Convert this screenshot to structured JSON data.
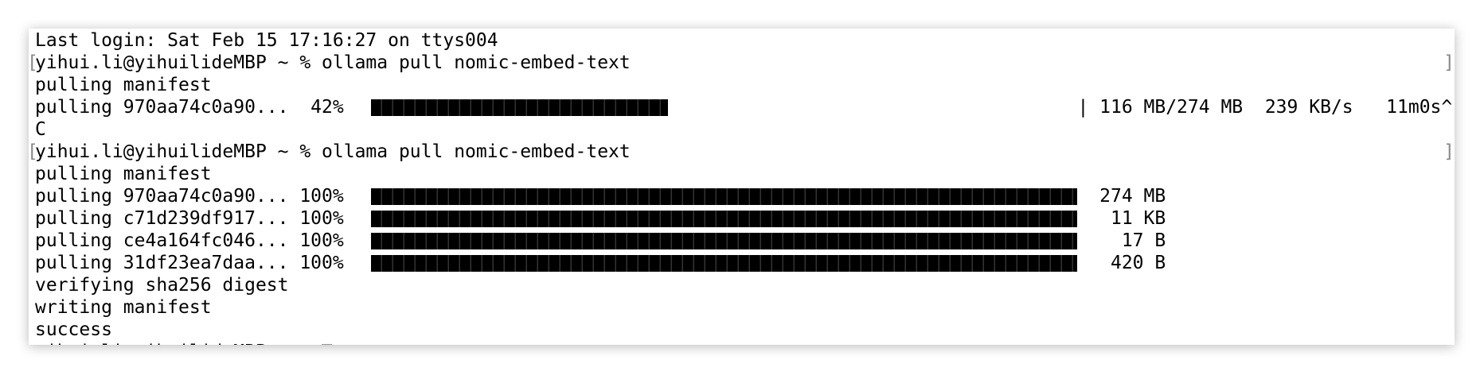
{
  "terminal": {
    "lines": [
      {
        "kind": "text",
        "text": "Last login: Sat Feb 15 17:16:27 on ttys004"
      },
      {
        "kind": "prompt",
        "bracket_left": "[",
        "text": "yihui.li@yihuilideMBP ~ % ollama pull nomic-embed-text",
        "bracket_right": "]"
      },
      {
        "kind": "text",
        "text": "pulling manifest"
      },
      {
        "kind": "progress",
        "text": "pulling 970aa74c0a90...  42%",
        "progress": 42,
        "status": "| 116 MB/274 MB  239 KB/s   11m0s^"
      },
      {
        "kind": "text",
        "text": "C"
      },
      {
        "kind": "prompt",
        "bracket_left": "[",
        "text": "yihui.li@yihuilideMBP ~ % ollama pull nomic-embed-text",
        "bracket_right": "]"
      },
      {
        "kind": "text",
        "text": "pulling manifest"
      },
      {
        "kind": "progress",
        "text": "pulling 970aa74c0a90... 100%",
        "progress": 100,
        "status": "  274 MB"
      },
      {
        "kind": "progress",
        "text": "pulling c71d239df917... 100%",
        "progress": 100,
        "status": "   11 KB"
      },
      {
        "kind": "progress",
        "text": "pulling ce4a164fc046... 100%",
        "progress": 100,
        "status": "    17 B"
      },
      {
        "kind": "progress",
        "text": "pulling 31df23ea7daa... 100%",
        "progress": 100,
        "status": "   420 B"
      },
      {
        "kind": "text",
        "text": "verifying sha256 digest"
      },
      {
        "kind": "text",
        "text": "writing manifest"
      },
      {
        "kind": "text",
        "text": "success"
      },
      {
        "kind": "cursor",
        "text": "yihui.li@yihuilideMBP ~ % "
      }
    ]
  }
}
